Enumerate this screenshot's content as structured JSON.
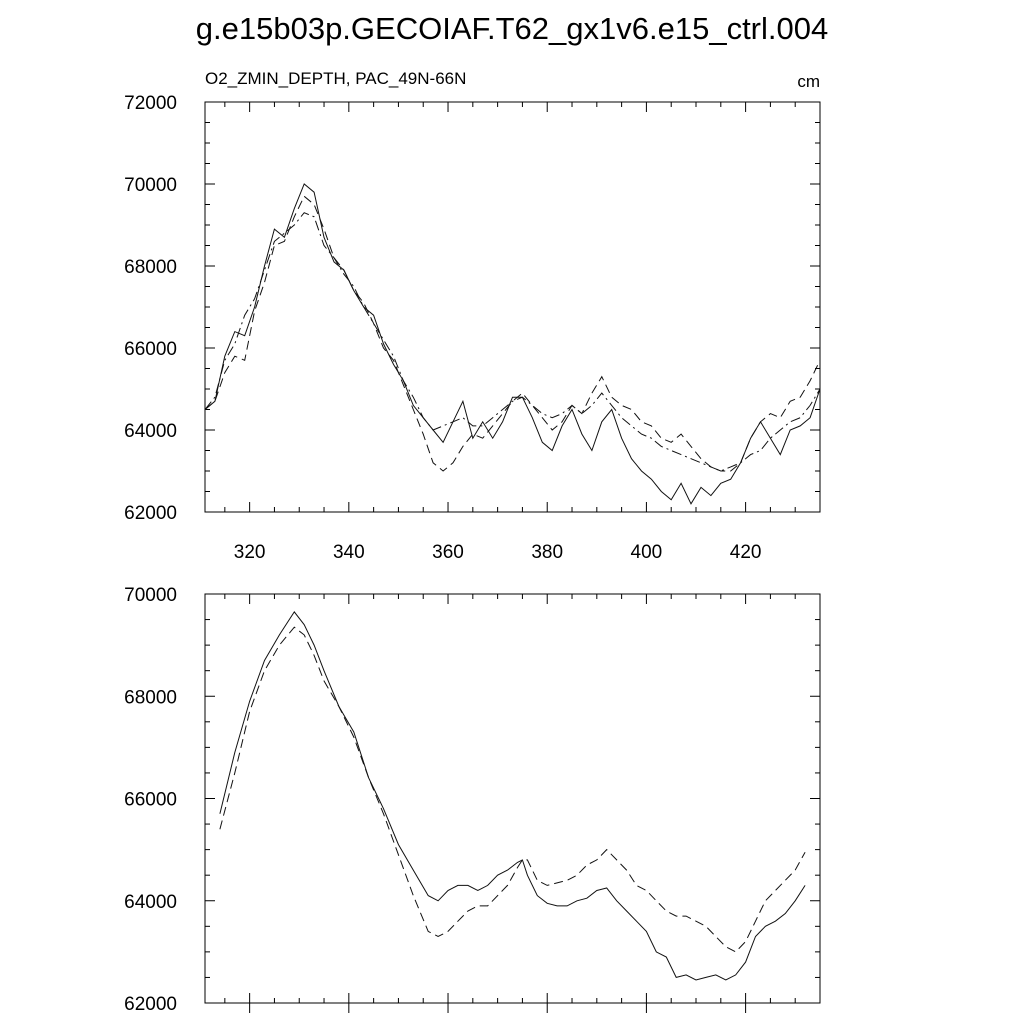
{
  "title": "g.e15b03p.GECOIAF.T62_gx1v6.e15_ctrl.004",
  "chart_data": [
    {
      "type": "line",
      "title": "O2_ZMIN_DEPTH, PAC_49N-66N",
      "units": "cm",
      "xlim": [
        311,
        435
      ],
      "ylim": [
        62000,
        72000
      ],
      "xticks": [
        320,
        340,
        360,
        380,
        400,
        420
      ],
      "xtick_labels": [
        "320",
        "340",
        "360",
        "380",
        "400",
        "420"
      ],
      "yticks": [
        62000,
        64000,
        66000,
        68000,
        70000,
        72000
      ],
      "ytick_labels": [
        "62000",
        "64000",
        "66000",
        "68000",
        "70000",
        "72000"
      ],
      "series": [
        {
          "name": "solid",
          "style": "solid",
          "x": [
            311,
            313,
            315,
            317,
            319,
            321,
            323,
            325,
            327,
            329,
            331,
            333,
            335,
            337,
            339,
            341,
            343,
            345,
            347,
            349,
            351,
            353,
            355,
            357,
            359,
            361,
            363,
            365,
            367,
            369,
            371,
            373,
            375,
            377,
            379,
            381,
            383,
            385,
            387,
            389,
            391,
            393,
            395,
            397,
            399,
            401,
            403,
            405,
            407,
            409,
            411,
            413,
            415,
            417,
            419,
            421,
            423,
            425,
            427,
            429,
            431,
            433,
            435
          ],
          "y": [
            64500,
            64700,
            65800,
            66400,
            66300,
            67000,
            68000,
            68900,
            68700,
            69400,
            70000,
            69800,
            68700,
            68100,
            67900,
            67400,
            67000,
            66800,
            66100,
            65600,
            65200,
            64600,
            64300,
            64000,
            63700,
            64200,
            64700,
            63800,
            64200,
            63800,
            64200,
            64800,
            64800,
            64300,
            63700,
            63500,
            64100,
            64500,
            63900,
            63500,
            64200,
            64500,
            63800,
            63300,
            63000,
            62800,
            62500,
            62300,
            62700,
            62200,
            62600,
            62400,
            62700,
            62800,
            63200,
            63800,
            64200,
            63800,
            63400,
            64000,
            64100,
            64300,
            65000
          ]
        },
        {
          "name": "dashed",
          "style": "dashed",
          "x": [
            311,
            313,
            315,
            317,
            319,
            321,
            323,
            325,
            327,
            329,
            331,
            333,
            335,
            337,
            339,
            341,
            343,
            345,
            347,
            349,
            351,
            353,
            355,
            357,
            359,
            361,
            363,
            365,
            367,
            369,
            371,
            373,
            375,
            377,
            379,
            381,
            383,
            385,
            387,
            389,
            391,
            393,
            395,
            397,
            399,
            401,
            403,
            405,
            407,
            409,
            411,
            413,
            415,
            417,
            419,
            421,
            423,
            425,
            427,
            429,
            431,
            433,
            435
          ],
          "y": [
            64500,
            64700,
            65400,
            65800,
            65700,
            66900,
            67600,
            68500,
            68600,
            69200,
            69700,
            69500,
            68900,
            68200,
            67900,
            67400,
            67100,
            66600,
            66000,
            65700,
            65100,
            64500,
            63900,
            63200,
            63000,
            63200,
            63600,
            63900,
            63800,
            64100,
            64400,
            64700,
            64900,
            64600,
            64300,
            64000,
            64200,
            64600,
            64400,
            64900,
            65300,
            64800,
            64600,
            64500,
            64200,
            64100,
            63800,
            63700,
            63900,
            63600,
            63300,
            63100,
            63000,
            63000,
            63200,
            63800,
            64200,
            64400,
            64300,
            64700,
            64800,
            65200,
            65700
          ]
        },
        {
          "name": "dash-dot",
          "style": "dashdot",
          "x": [
            311,
            313,
            315,
            317,
            319,
            321,
            323,
            325,
            327,
            329,
            331,
            333,
            335,
            337,
            339,
            341,
            343,
            345,
            347,
            349,
            351,
            353,
            355,
            357,
            359,
            361,
            363,
            365,
            367,
            369,
            371,
            373,
            375,
            377,
            379,
            381,
            383,
            385,
            387,
            389,
            391,
            393,
            395,
            397,
            399,
            401,
            403,
            405,
            407,
            409,
            411,
            413,
            415,
            417,
            419,
            421,
            423,
            425,
            427,
            429,
            431,
            433,
            435
          ],
          "y": [
            64500,
            64800,
            65700,
            66100,
            66800,
            67200,
            67900,
            68600,
            68800,
            69000,
            69300,
            69200,
            68500,
            68200,
            67800,
            67500,
            67000,
            66600,
            66200,
            65800,
            65200,
            64800,
            64300,
            64000,
            64100,
            64200,
            64300,
            64100,
            64100,
            64300,
            64500,
            64700,
            64800,
            64600,
            64400,
            64300,
            64400,
            64600,
            64400,
            64600,
            64900,
            64600,
            64300,
            64100,
            63900,
            63800,
            63600,
            63500,
            63400,
            63300,
            63200,
            63100,
            63000,
            63100,
            63200,
            63400,
            63500,
            63800,
            64000,
            64200,
            64300,
            64600,
            65000
          ]
        }
      ]
    },
    {
      "type": "line",
      "xlim": [
        311,
        435
      ],
      "ylim": [
        62000,
        70000
      ],
      "xticks": [
        320,
        340,
        360,
        380,
        400,
        420
      ],
      "yticks": [
        62000,
        64000,
        66000,
        68000,
        70000
      ],
      "ytick_labels": [
        "62000",
        "64000",
        "66000",
        "68000",
        "70000"
      ],
      "series": [
        {
          "name": "solid-smoothed",
          "style": "solid",
          "x": [
            314,
            317,
            320,
            323,
            326,
            329,
            331,
            333,
            335,
            338,
            341,
            344,
            347,
            350,
            353,
            356,
            358,
            360,
            362,
            364,
            366,
            368,
            370,
            372,
            374,
            375,
            376,
            378,
            380,
            382,
            384,
            386,
            388,
            390,
            392,
            394,
            396,
            398,
            400,
            402,
            404,
            406,
            408,
            410,
            412,
            414,
            416,
            418,
            420,
            422,
            424,
            426,
            428,
            430,
            432
          ],
          "y": [
            65700,
            66900,
            67900,
            68700,
            69200,
            69650,
            69400,
            69000,
            68500,
            67800,
            67300,
            66400,
            65800,
            65100,
            64600,
            64100,
            64000,
            64200,
            64300,
            64300,
            64200,
            64300,
            64500,
            64600,
            64750,
            64800,
            64500,
            64100,
            63950,
            63900,
            63900,
            64000,
            64050,
            64200,
            64250,
            64000,
            63800,
            63600,
            63400,
            63000,
            62900,
            62500,
            62550,
            62450,
            62500,
            62550,
            62450,
            62550,
            62800,
            63300,
            63500,
            63600,
            63750,
            64000,
            64300
          ]
        },
        {
          "name": "dashed-smoothed",
          "style": "dashed",
          "x": [
            314,
            317,
            320,
            323,
            326,
            329,
            331,
            333,
            335,
            338,
            341,
            344,
            347,
            350,
            353,
            356,
            358,
            360,
            362,
            364,
            366,
            368,
            370,
            372,
            374,
            375,
            376,
            378,
            380,
            382,
            384,
            386,
            388,
            390,
            392,
            394,
            396,
            398,
            400,
            402,
            404,
            406,
            408,
            410,
            412,
            414,
            416,
            418,
            420,
            422,
            424,
            426,
            428,
            430,
            432
          ],
          "y": [
            65400,
            66500,
            67700,
            68500,
            69000,
            69350,
            69200,
            68800,
            68300,
            67800,
            67200,
            66400,
            65700,
            64900,
            64100,
            63400,
            63300,
            63400,
            63600,
            63800,
            63900,
            63900,
            64100,
            64300,
            64650,
            64800,
            64800,
            64400,
            64300,
            64350,
            64400,
            64500,
            64700,
            64800,
            65000,
            64800,
            64600,
            64300,
            64200,
            64000,
            63800,
            63700,
            63700,
            63600,
            63500,
            63300,
            63100,
            63000,
            63200,
            63600,
            64000,
            64200,
            64400,
            64600,
            64950
          ]
        }
      ]
    }
  ]
}
